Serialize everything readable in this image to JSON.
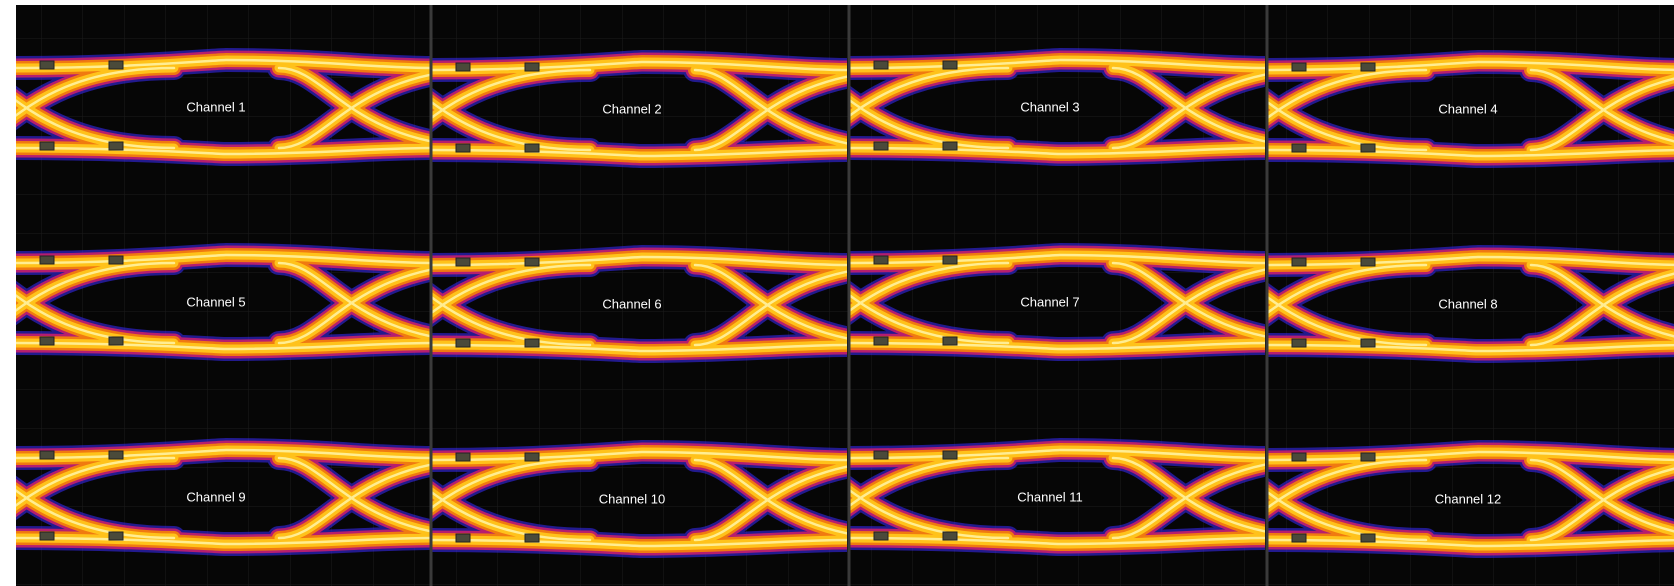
{
  "panels": [
    {
      "label": "Channel 1"
    },
    {
      "label": "Channel 2"
    },
    {
      "label": "Channel 3"
    },
    {
      "label": "Channel 4"
    },
    {
      "label": "Channel 5"
    },
    {
      "label": "Channel 6"
    },
    {
      "label": "Channel 7"
    },
    {
      "label": "Channel 8"
    },
    {
      "label": "Channel 9"
    },
    {
      "label": "Channel 10"
    },
    {
      "label": "Channel 11"
    },
    {
      "label": "Channel 12"
    }
  ]
}
